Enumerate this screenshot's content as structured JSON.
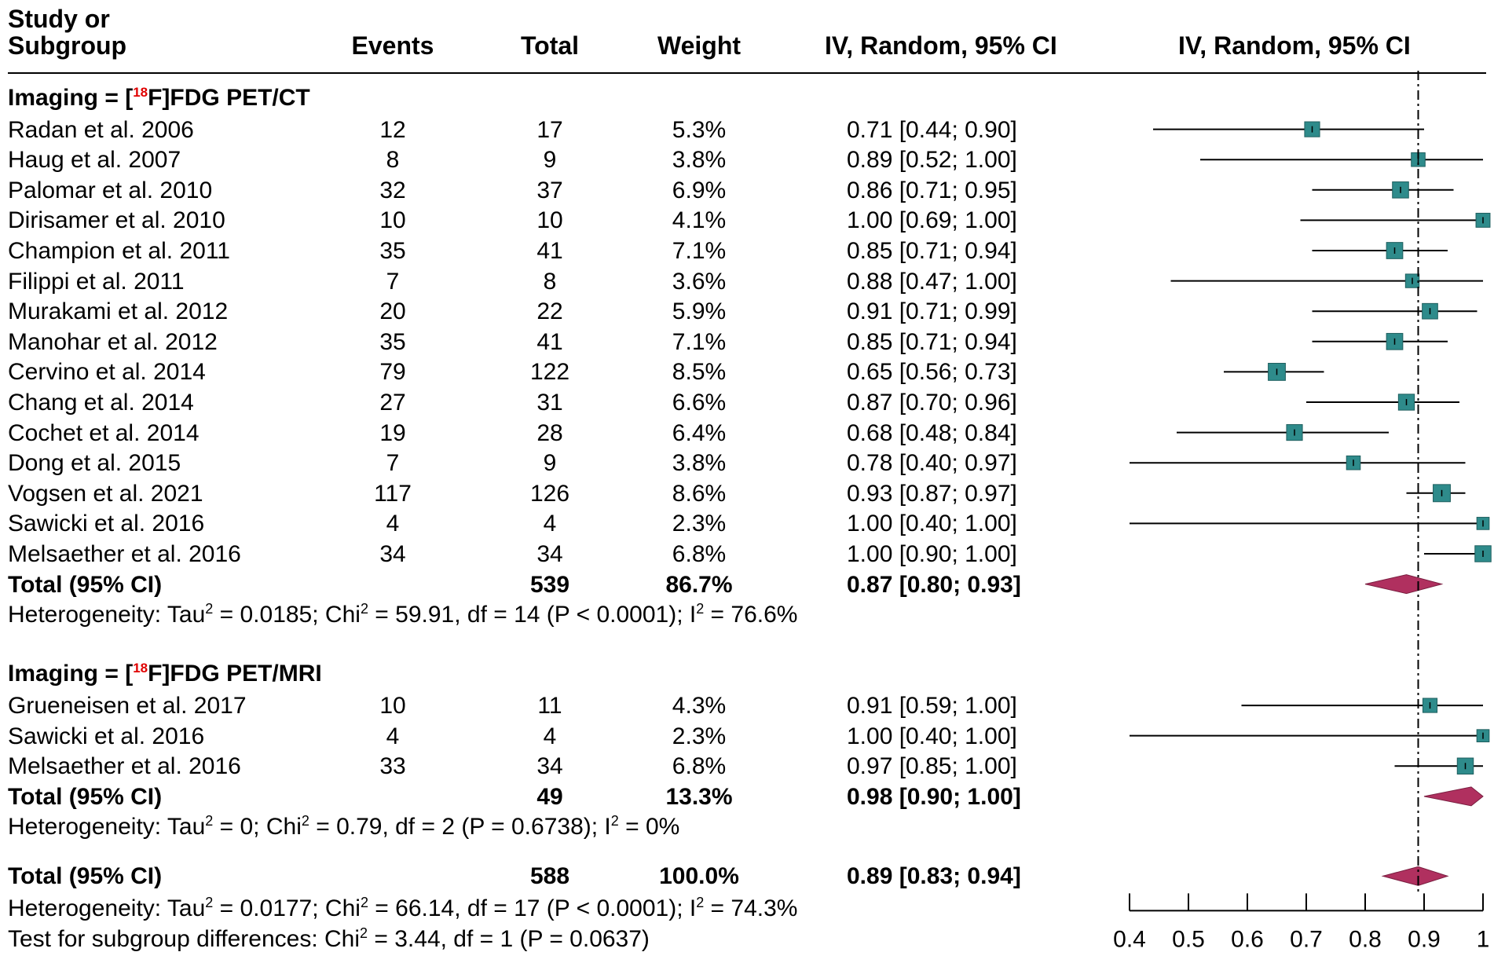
{
  "headers": {
    "study": [
      "Study or",
      "Subgroup"
    ],
    "events": "Events",
    "total": "Total",
    "weight": "Weight",
    "ci": "IV, Random, 95% CI",
    "plot": "IV, Random, 95% CI"
  },
  "colors": {
    "box": "#2e8b8b",
    "diamond": "#b0305f",
    "line": "#000000",
    "ref_line": "#000000"
  },
  "chart_data": {
    "type": "forest",
    "axis": {
      "ticks": [
        0.4,
        0.5,
        0.6,
        0.7,
        0.8,
        0.9,
        1
      ],
      "tick_labels": [
        "0.4",
        "0.5",
        "0.6",
        "0.7",
        "0.8",
        "0.9",
        "1"
      ],
      "xlim": [
        0.4,
        1.0
      ],
      "reference_line": 0.89,
      "reference_style": "dash-dot"
    },
    "subgroups": [
      {
        "label_pre": "Imaging = [",
        "label_sup": "18",
        "label_post": "F]FDG PET/CT",
        "studies": [
          {
            "study": "Radan et al. 2006",
            "events": "12",
            "total": "17",
            "weight": "5.3%",
            "ci_text": "0.71 [0.44; 0.90]",
            "est": 0.71,
            "lo": 0.44,
            "hi": 0.9,
            "w": 5.3
          },
          {
            "study": "Haug et al. 2007",
            "events": "8",
            "total": "9",
            "weight": "3.8%",
            "ci_text": "0.89 [0.52; 1.00]",
            "est": 0.89,
            "lo": 0.52,
            "hi": 1.0,
            "w": 3.8
          },
          {
            "study": "Palomar et al. 2010",
            "events": "32",
            "total": "37",
            "weight": "6.9%",
            "ci_text": "0.86 [0.71; 0.95]",
            "est": 0.86,
            "lo": 0.71,
            "hi": 0.95,
            "w": 6.9
          },
          {
            "study": "Dirisamer et al. 2010",
            "events": "10",
            "total": "10",
            "weight": "4.1%",
            "ci_text": "1.00 [0.69; 1.00]",
            "est": 1.0,
            "lo": 0.69,
            "hi": 1.0,
            "w": 4.1
          },
          {
            "study": "Champion et al. 2011",
            "events": "35",
            "total": "41",
            "weight": "7.1%",
            "ci_text": "0.85 [0.71; 0.94]",
            "est": 0.85,
            "lo": 0.71,
            "hi": 0.94,
            "w": 7.1
          },
          {
            "study": "Filippi et al. 2011",
            "events": "7",
            "total": "8",
            "weight": "3.6%",
            "ci_text": "0.88 [0.47; 1.00]",
            "est": 0.88,
            "lo": 0.47,
            "hi": 1.0,
            "w": 3.6
          },
          {
            "study": "Murakami et al. 2012",
            "events": "20",
            "total": "22",
            "weight": "5.9%",
            "ci_text": "0.91 [0.71; 0.99]",
            "est": 0.91,
            "lo": 0.71,
            "hi": 0.99,
            "w": 5.9
          },
          {
            "study": "Manohar et al. 2012",
            "events": "35",
            "total": "41",
            "weight": "7.1%",
            "ci_text": "0.85 [0.71; 0.94]",
            "est": 0.85,
            "lo": 0.71,
            "hi": 0.94,
            "w": 7.1
          },
          {
            "study": "Cervino et al. 2014",
            "events": "79",
            "total": "122",
            "weight": "8.5%",
            "ci_text": "0.65 [0.56; 0.73]",
            "est": 0.65,
            "lo": 0.56,
            "hi": 0.73,
            "w": 8.5
          },
          {
            "study": "Chang et al. 2014",
            "events": "27",
            "total": "31",
            "weight": "6.6%",
            "ci_text": "0.87 [0.70; 0.96]",
            "est": 0.87,
            "lo": 0.7,
            "hi": 0.96,
            "w": 6.6
          },
          {
            "study": "Cochet et al. 2014",
            "events": "19",
            "total": "28",
            "weight": "6.4%",
            "ci_text": "0.68 [0.48; 0.84]",
            "est": 0.68,
            "lo": 0.48,
            "hi": 0.84,
            "w": 6.4
          },
          {
            "study": "Dong et al. 2015",
            "events": "7",
            "total": "9",
            "weight": "3.8%",
            "ci_text": "0.78 [0.40; 0.97]",
            "est": 0.78,
            "lo": 0.4,
            "hi": 0.97,
            "w": 3.8
          },
          {
            "study": "Vogsen  et al. 2021",
            "events": "117",
            "total": "126",
            "weight": "8.6%",
            "ci_text": "0.93 [0.87; 0.97]",
            "est": 0.93,
            "lo": 0.87,
            "hi": 0.97,
            "w": 8.6
          },
          {
            "study": "Sawicki et al. 2016",
            "events": "4",
            "total": "4",
            "weight": "2.3%",
            "ci_text": "1.00 [0.40; 1.00]",
            "est": 1.0,
            "lo": 0.4,
            "hi": 1.0,
            "w": 2.3
          },
          {
            "study": "Melsaether et al. 2016",
            "events": "34",
            "total": "34",
            "weight": "6.8%",
            "ci_text": "1.00 [0.90; 1.00]",
            "est": 1.0,
            "lo": 0.9,
            "hi": 1.0,
            "w": 6.8
          }
        ],
        "total": {
          "label": "Total (95% CI)",
          "total": "539",
          "weight": "86.7%",
          "ci_text": "0.87 [0.80; 0.93]",
          "est": 0.87,
          "lo": 0.8,
          "hi": 0.93
        },
        "heterogeneity": [
          {
            "t": "Heterogeneity: Tau"
          },
          {
            "sup": "2"
          },
          {
            "t": " = 0.0185; Chi"
          },
          {
            "sup": "2"
          },
          {
            "t": " = 59.91, df = 14 (P < 0.0001); I"
          },
          {
            "sup": "2"
          },
          {
            "t": " = 76.6%"
          }
        ]
      },
      {
        "label_pre": "Imaging = [",
        "label_sup": "18",
        "label_post": "F]FDG PET/MRI",
        "studies": [
          {
            "study": "Grueneisen et al. 2017",
            "events": "10",
            "total": "11",
            "weight": "4.3%",
            "ci_text": "0.91 [0.59; 1.00]",
            "est": 0.91,
            "lo": 0.59,
            "hi": 1.0,
            "w": 4.3
          },
          {
            "study": "Sawicki et al. 2016",
            "events": "4",
            "total": "4",
            "weight": "2.3%",
            "ci_text": "1.00 [0.40; 1.00]",
            "est": 1.0,
            "lo": 0.4,
            "hi": 1.0,
            "w": 2.3
          },
          {
            "study": "Melsaether et al. 2016",
            "events": "33",
            "total": "34",
            "weight": "6.8%",
            "ci_text": "0.97 [0.85; 1.00]",
            "est": 0.97,
            "lo": 0.85,
            "hi": 1.0,
            "w": 6.8
          }
        ],
        "total": {
          "label": "Total (95% CI)",
          "total": "49",
          "weight": "13.3%",
          "ci_text": "0.98 [0.90; 1.00]",
          "est": 0.98,
          "lo": 0.9,
          "hi": 1.0
        },
        "heterogeneity": [
          {
            "t": "Heterogeneity: Tau"
          },
          {
            "sup": "2"
          },
          {
            "t": " = 0; Chi"
          },
          {
            "sup": "2"
          },
          {
            "t": " = 0.79, df = 2 (P = 0.6738); I"
          },
          {
            "sup": "2"
          },
          {
            "t": " = 0%"
          }
        ]
      }
    ],
    "overall": {
      "label": "Total (95% CI)",
      "total": "588",
      "weight": "100.0%",
      "ci_text": "0.89 [0.83; 0.94]",
      "est": 0.89,
      "lo": 0.83,
      "hi": 0.94,
      "heterogeneity": [
        {
          "t": "Heterogeneity: Tau"
        },
        {
          "sup": "2"
        },
        {
          "t": " = 0.0177; Chi"
        },
        {
          "sup": "2"
        },
        {
          "t": " = 66.14, df = 17 (P < 0.0001); I"
        },
        {
          "sup": "2"
        },
        {
          "t": " = 74.3%"
        }
      ],
      "subgroup_test": [
        {
          "t": "Test for subgroup differences: Chi"
        },
        {
          "sup": "2"
        },
        {
          "t": " = 3.44, df = 1 (P = 0.0637)"
        }
      ]
    }
  }
}
